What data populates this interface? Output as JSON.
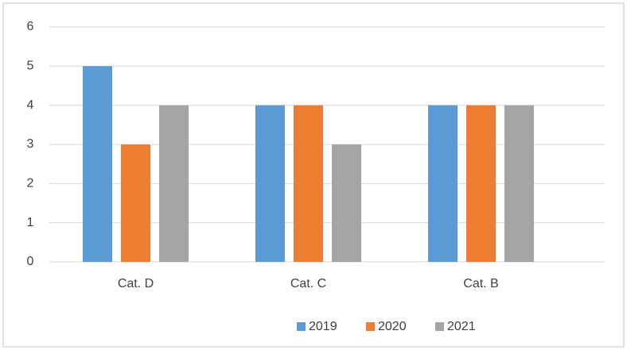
{
  "chart_data": {
    "type": "bar",
    "categories": [
      "Cat. D",
      "Cat. C",
      "Cat. B"
    ],
    "series": [
      {
        "name": "2019",
        "color": "#5b9bd5",
        "values": [
          5,
          4,
          4
        ]
      },
      {
        "name": "2020",
        "color": "#ed7d31",
        "values": [
          3,
          4,
          4
        ]
      },
      {
        "name": "2021",
        "color": "#a5a5a5",
        "values": [
          4,
          3,
          4
        ]
      }
    ],
    "ylim": [
      0,
      6
    ],
    "yticks": [
      0,
      1,
      2,
      3,
      4,
      5,
      6
    ],
    "grid": true,
    "legend": "bottom"
  }
}
